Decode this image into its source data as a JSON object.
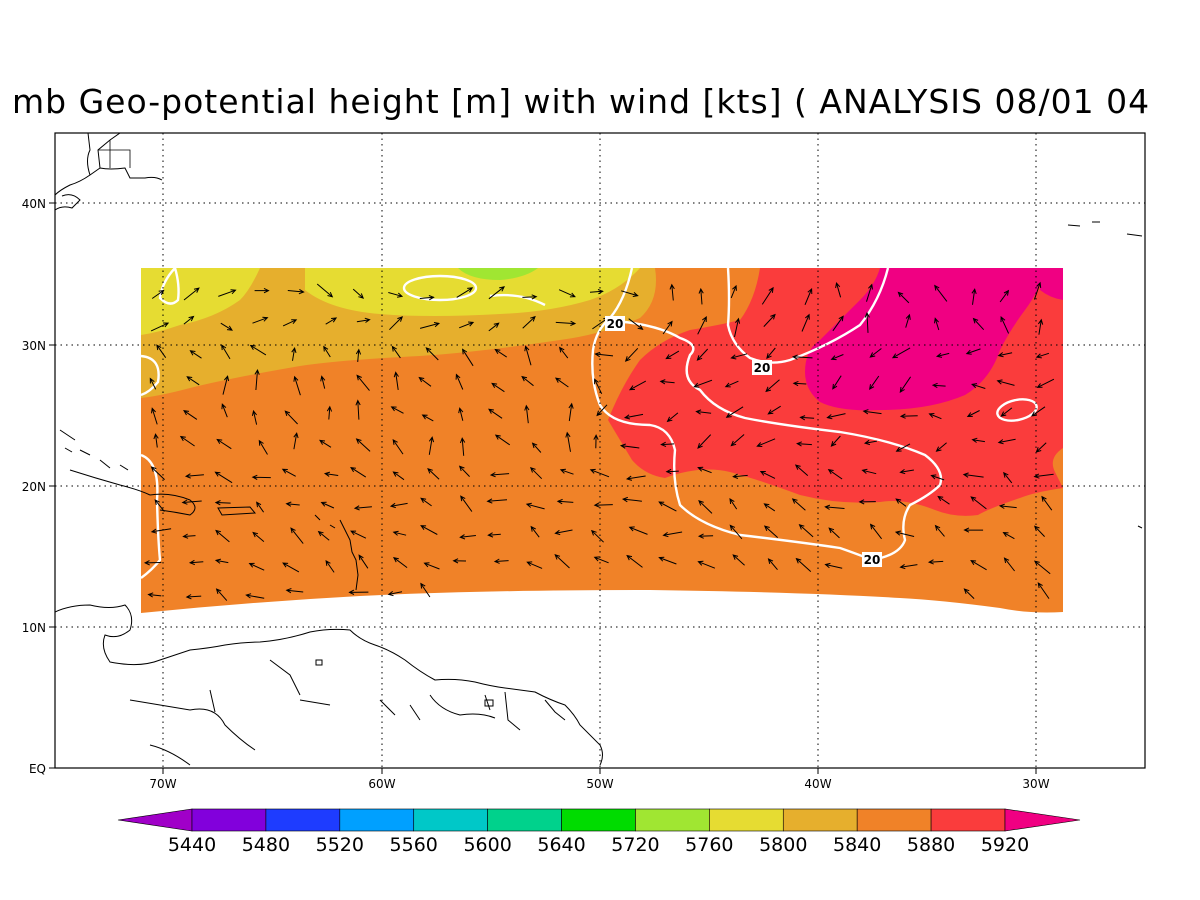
{
  "title": "mb Geo-potential height [m] with wind [kts] ( ANALYSIS 08/01 04",
  "lat_labels": [
    "40N",
    "30N",
    "20N",
    "10N",
    "EQ"
  ],
  "lon_labels": [
    "70W",
    "60W",
    "50W",
    "40W",
    "30W"
  ],
  "contour_label": "20",
  "colorbar": {
    "labels": [
      "5440",
      "5480",
      "5520",
      "5560",
      "5600",
      "5640",
      "5720",
      "5760",
      "5800",
      "5840",
      "5880",
      "5920"
    ],
    "colors": [
      "#a000c8",
      "#8200dc",
      "#1e3cff",
      "#00a0ff",
      "#00c8c8",
      "#00d28c",
      "#00dc00",
      "#a0e632",
      "#e6dc32",
      "#e6af2d",
      "#f08228",
      "#fa3c3c",
      "#f00082"
    ]
  }
}
